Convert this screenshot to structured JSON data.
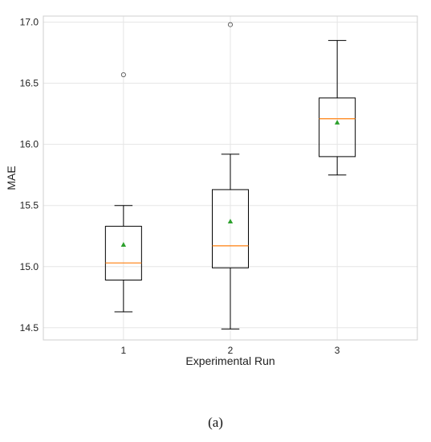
{
  "chart_data": {
    "type": "box",
    "xlabel": "Experimental Run",
    "ylabel": "MAE",
    "ylim": [
      14.4,
      17.05
    ],
    "yticks": [
      "14.5",
      "15.0",
      "15.5",
      "16.0",
      "16.5",
      "17.0"
    ],
    "grid": true,
    "categories": [
      "1",
      "2",
      "3"
    ],
    "boxes": [
      {
        "category": "1",
        "whisker_low": 14.63,
        "q1": 14.89,
        "median": 15.03,
        "q3": 15.33,
        "whisker_high": 15.5,
        "mean": 15.18,
        "outliers": [
          16.57
        ]
      },
      {
        "category": "2",
        "whisker_low": 14.49,
        "q1": 14.99,
        "median": 15.17,
        "q3": 15.63,
        "whisker_high": 15.92,
        "mean": 15.37,
        "outliers": [
          16.98
        ]
      },
      {
        "category": "3",
        "whisker_low": 15.75,
        "q1": 15.9,
        "median": 16.21,
        "q3": 16.38,
        "whisker_high": 16.85,
        "mean": 16.18,
        "outliers": []
      }
    ],
    "colors": {
      "box": "#000000",
      "median": "#ff7f0e",
      "mean": "#2ca02c",
      "grid": "#e5e5e5",
      "frame": "#cfcfcf"
    }
  },
  "caption": "(a)"
}
